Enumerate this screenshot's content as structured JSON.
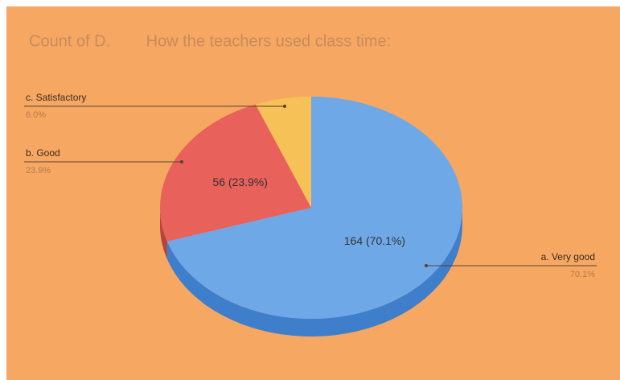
{
  "chart_data": {
    "type": "pie",
    "title": "Count of D.        How the teachers used class time:",
    "categories": [
      "a. Very good",
      "b. Good",
      "c. Satisfactory"
    ],
    "values": [
      70.1,
      23.9,
      6.0
    ],
    "value_labels": [
      "70.1%",
      "23.9%",
      "6.0%"
    ],
    "inner_labels": [
      "164 (70.1%)",
      "56 (23.9%)",
      null
    ],
    "colors": [
      "#6fa8e6",
      "#e8615a",
      "#f6c156"
    ],
    "side_colors": [
      "#3f7ecb",
      "#b5443f",
      "#c99433"
    ]
  }
}
